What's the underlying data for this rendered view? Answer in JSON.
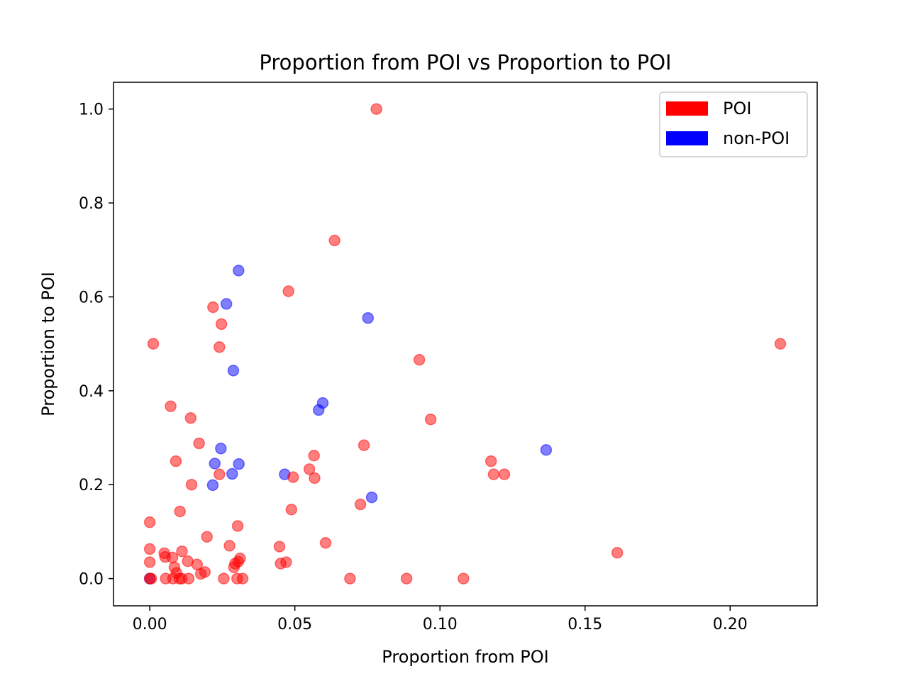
{
  "chart_data": {
    "type": "scatter",
    "title": "Proportion from POI vs Proportion to POI",
    "xlabel": "Proportion from POI",
    "ylabel": "Proportion to POI",
    "xlim": [
      -0.0125,
      0.23
    ],
    "ylim": [
      -0.058,
      1.057
    ],
    "x_ticks": [
      0.0,
      0.05,
      0.1,
      0.15,
      0.2
    ],
    "x_tick_labels": [
      "0.00",
      "0.05",
      "0.10",
      "0.15",
      "0.20"
    ],
    "y_ticks": [
      0.0,
      0.2,
      0.4,
      0.6,
      0.8,
      1.0
    ],
    "y_tick_labels": [
      "0.0",
      "0.2",
      "0.4",
      "0.6",
      "0.8",
      "1.0"
    ],
    "grid": false,
    "legend_position": "top-right",
    "legend": [
      {
        "label": "POI",
        "color": "#ff0000"
      },
      {
        "label": "non-POI",
        "color": "#0000ff"
      }
    ],
    "marker_alpha": 0.5,
    "series": [
      {
        "name": "non-POI",
        "color": "#0000ff",
        "points": [
          [
            0.0306,
            0.656
          ],
          [
            0.0264,
            0.585
          ],
          [
            0.0752,
            0.555
          ],
          [
            0.0288,
            0.443
          ],
          [
            0.0596,
            0.374
          ],
          [
            0.0582,
            0.359
          ],
          [
            0.0245,
            0.277
          ],
          [
            0.1366,
            0.274
          ],
          [
            0.0224,
            0.245
          ],
          [
            0.0307,
            0.244
          ],
          [
            0.0284,
            0.223
          ],
          [
            0.0465,
            0.222
          ],
          [
            0.0217,
            0.199
          ],
          [
            0.0765,
            0.173
          ],
          [
            0.0,
            0.0
          ]
        ]
      },
      {
        "name": "POI",
        "color": "#ff0000",
        "points": [
          [
            0.0781,
            1.0
          ],
          [
            0.0637,
            0.72
          ],
          [
            0.0478,
            0.612
          ],
          [
            0.0218,
            0.578
          ],
          [
            0.0247,
            0.542
          ],
          [
            0.0012,
            0.5
          ],
          [
            0.024,
            0.493
          ],
          [
            0.2173,
            0.5
          ],
          [
            0.0929,
            0.466
          ],
          [
            0.0072,
            0.367
          ],
          [
            0.0141,
            0.342
          ],
          [
            0.0968,
            0.339
          ],
          [
            0.017,
            0.288
          ],
          [
            0.0738,
            0.284
          ],
          [
            0.0566,
            0.262
          ],
          [
            0.055,
            0.233
          ],
          [
            0.009,
            0.25
          ],
          [
            0.1176,
            0.25
          ],
          [
            0.024,
            0.222
          ],
          [
            0.0494,
            0.216
          ],
          [
            0.0568,
            0.214
          ],
          [
            0.1185,
            0.222
          ],
          [
            0.1222,
            0.222
          ],
          [
            0.0144,
            0.2
          ],
          [
            0.0726,
            0.158
          ],
          [
            0.0488,
            0.147
          ],
          [
            0.0104,
            0.143
          ],
          [
            0.0,
            0.12
          ],
          [
            0.0303,
            0.112
          ],
          [
            0.0197,
            0.089
          ],
          [
            0.0606,
            0.076
          ],
          [
            0.0275,
            0.07
          ],
          [
            0.0447,
            0.068
          ],
          [
            0.0,
            0.063
          ],
          [
            0.0111,
            0.058
          ],
          [
            0.005,
            0.054
          ],
          [
            0.1611,
            0.055
          ],
          [
            0.0053,
            0.046
          ],
          [
            0.0078,
            0.045
          ],
          [
            0.0311,
            0.043
          ],
          [
            0.0,
            0.035
          ],
          [
            0.0131,
            0.037
          ],
          [
            0.047,
            0.035
          ],
          [
            0.0305,
            0.036
          ],
          [
            0.0451,
            0.032
          ],
          [
            0.0294,
            0.032
          ],
          [
            0.0163,
            0.03
          ],
          [
            0.0085,
            0.024
          ],
          [
            0.029,
            0.024
          ],
          [
            0.019,
            0.014
          ],
          [
            0.0176,
            0.01
          ],
          [
            0.0092,
            0.012
          ],
          [
            0.0055,
            0.0
          ],
          [
            0.008,
            0.0
          ],
          [
            0.0102,
            0.0
          ],
          [
            0.011,
            0.0
          ],
          [
            0.0134,
            0.0
          ],
          [
            0.0255,
            0.0
          ],
          [
            0.0301,
            0.0
          ],
          [
            0.032,
            0.0
          ],
          [
            0.069,
            0.0
          ],
          [
            0.0885,
            0.0
          ],
          [
            0.1081,
            0.0
          ],
          [
            0.0,
            0.0
          ],
          [
            0.0005,
            0.0
          ]
        ]
      }
    ]
  }
}
